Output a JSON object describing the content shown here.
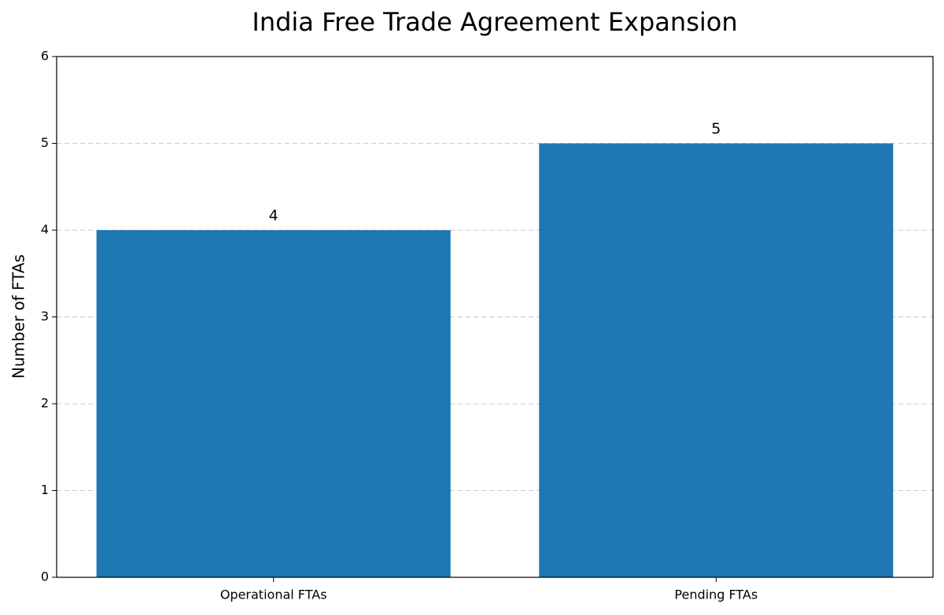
{
  "chart_data": {
    "type": "bar",
    "title": "India Free Trade Agreement Expansion",
    "ylabel": "Number of FTAs",
    "categories": [
      "Operational FTAs",
      "Pending FTAs"
    ],
    "values": [
      4,
      5
    ],
    "color": "#1f77b4",
    "ylim": [
      0,
      6
    ],
    "yticks": [
      0,
      1,
      2,
      3,
      4,
      5,
      6
    ],
    "grid": true
  }
}
